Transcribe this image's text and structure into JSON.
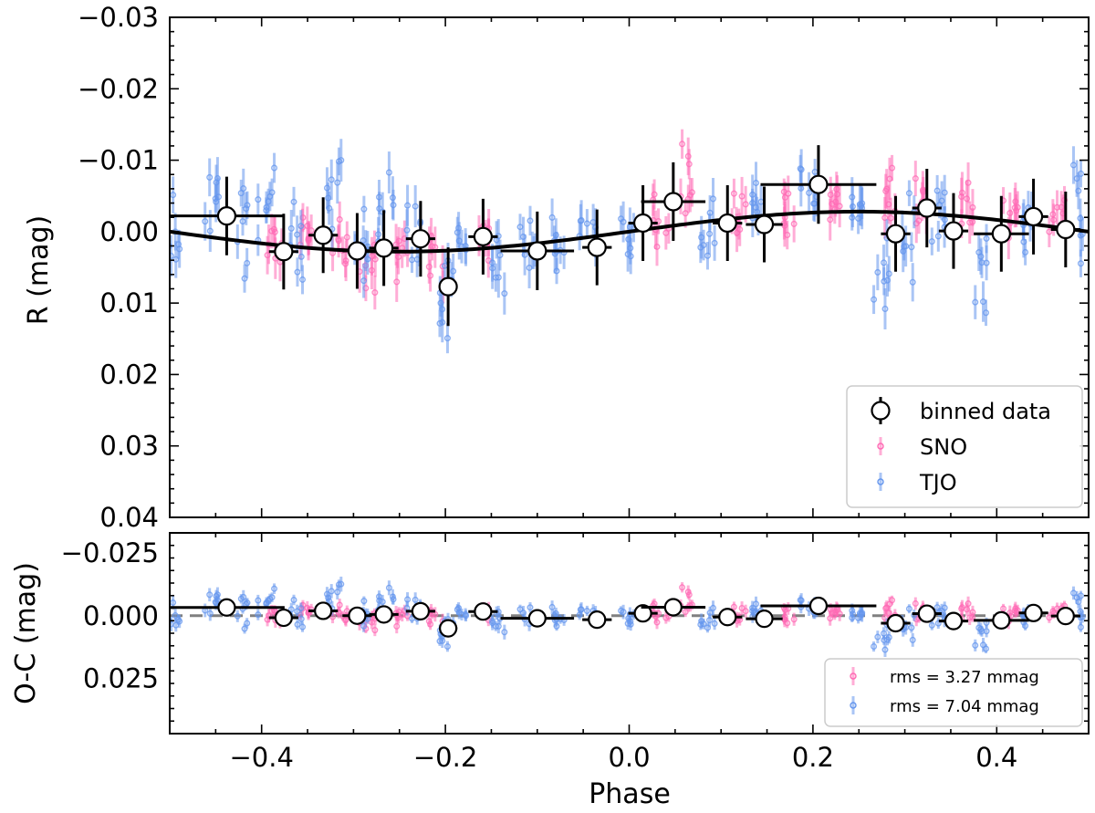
{
  "chart_data": [
    {
      "type": "scatter",
      "panel": "top",
      "ylabel": "R (mag)",
      "xlabel": "",
      "xlim": [
        -0.5,
        0.5
      ],
      "ylim": [
        -0.03,
        0.04
      ],
      "y_inverted": true,
      "xticks": [
        -0.4,
        -0.2,
        0.0,
        0.2,
        0.4
      ],
      "xtick_labels": [
        "−0.4",
        "−0.2",
        "0.0",
        "0.2",
        "0.4"
      ],
      "yticks": [
        -0.03,
        -0.02,
        -0.01,
        0.0,
        0.01,
        0.02,
        0.03,
        0.04
      ],
      "ytick_labels": [
        "−0.03",
        "−0.02",
        "−0.01",
        "0.00",
        "0.01",
        "0.02",
        "0.03",
        "0.04"
      ],
      "legend": {
        "placement": "lower-right",
        "entries": [
          {
            "label": "binned data",
            "series": "binned"
          },
          {
            "label": "SNO",
            "series": "SNO"
          },
          {
            "label": "TJO",
            "series": "TJO"
          }
        ]
      },
      "model": {
        "name": "sinusoid fit",
        "amplitude": 0.0028,
        "form": "y = -A*sin(2*pi*phase)"
      },
      "binned": {
        "name": "binned data",
        "color": "#000000",
        "points": [
          {
            "x": -0.438,
            "y": -0.0022,
            "xerr": 0.063,
            "yerr": 0.0055
          },
          {
            "x": -0.376,
            "y": 0.0028,
            "xerr": 0.016,
            "yerr": 0.0053
          },
          {
            "x": -0.333,
            "y": 0.0005,
            "xerr": 0.016,
            "yerr": 0.0053
          },
          {
            "x": -0.296,
            "y": 0.0027,
            "xerr": 0.016,
            "yerr": 0.0053
          },
          {
            "x": -0.267,
            "y": 0.0023,
            "xerr": 0.016,
            "yerr": 0.0053
          },
          {
            "x": -0.227,
            "y": 0.001,
            "xerr": 0.016,
            "yerr": 0.0053
          },
          {
            "x": -0.197,
            "y": 0.0077,
            "xerr": 0.01,
            "yerr": 0.0055
          },
          {
            "x": -0.159,
            "y": 0.0007,
            "xerr": 0.016,
            "yerr": 0.0053
          },
          {
            "x": -0.1,
            "y": 0.0027,
            "xerr": 0.04,
            "yerr": 0.0055
          },
          {
            "x": -0.035,
            "y": 0.0022,
            "xerr": 0.016,
            "yerr": 0.0053
          },
          {
            "x": 0.015,
            "y": -0.0012,
            "xerr": 0.016,
            "yerr": 0.0053
          },
          {
            "x": 0.048,
            "y": -0.0042,
            "xerr": 0.035,
            "yerr": 0.0055
          },
          {
            "x": 0.107,
            "y": -0.0012,
            "xerr": 0.016,
            "yerr": 0.0053
          },
          {
            "x": 0.147,
            "y": -0.001,
            "xerr": 0.02,
            "yerr": 0.0053
          },
          {
            "x": 0.206,
            "y": -0.0066,
            "xerr": 0.063,
            "yerr": 0.0055
          },
          {
            "x": 0.29,
            "y": 0.0003,
            "xerr": 0.016,
            "yerr": 0.0053
          },
          {
            "x": 0.324,
            "y": -0.0033,
            "xerr": 0.016,
            "yerr": 0.0055
          },
          {
            "x": 0.353,
            "y": -0.0001,
            "xerr": 0.016,
            "yerr": 0.0053
          },
          {
            "x": 0.405,
            "y": 0.0003,
            "xerr": 0.03,
            "yerr": 0.0053
          },
          {
            "x": 0.44,
            "y": -0.0021,
            "xerr": 0.016,
            "yerr": 0.0053
          },
          {
            "x": 0.475,
            "y": -0.0003,
            "xerr": 0.016,
            "yerr": 0.0053
          }
        ]
      },
      "series": [
        {
          "name": "SNO",
          "color": "#ff69b4",
          "groups": [
            {
              "x": -0.385,
              "center": 0.002,
              "spread": 0.006
            },
            {
              "x": -0.35,
              "center": 0.0,
              "spread": 0.006
            },
            {
              "x": -0.315,
              "center": 0.002,
              "spread": 0.006
            },
            {
              "x": -0.285,
              "center": 0.004,
              "spread": 0.007
            },
            {
              "x": -0.245,
              "center": 0.002,
              "spread": 0.006
            },
            {
              "x": -0.21,
              "center": 0.004,
              "spread": 0.006
            },
            {
              "x": -0.16,
              "center": 0.001,
              "spread": 0.006
            },
            {
              "x": 0.035,
              "center": -0.002,
              "spread": 0.007
            },
            {
              "x": 0.06,
              "center": -0.006,
              "spread": 0.008
            },
            {
              "x": 0.12,
              "center": -0.001,
              "spread": 0.006
            },
            {
              "x": 0.175,
              "center": -0.003,
              "spread": 0.006
            },
            {
              "x": 0.225,
              "center": -0.004,
              "spread": 0.006
            },
            {
              "x": 0.285,
              "center": -0.004,
              "spread": 0.007
            },
            {
              "x": 0.32,
              "center": -0.003,
              "spread": 0.008
            },
            {
              "x": 0.37,
              "center": -0.003,
              "spread": 0.007
            },
            {
              "x": 0.415,
              "center": -0.002,
              "spread": 0.006
            },
            {
              "x": 0.465,
              "center": -0.002,
              "spread": 0.006
            }
          ]
        },
        {
          "name": "TJO",
          "color": "#6495ed",
          "groups": [
            {
              "x": -0.495,
              "center": 0.0,
              "spread": 0.008
            },
            {
              "x": -0.455,
              "center": -0.004,
              "spread": 0.007
            },
            {
              "x": -0.42,
              "center": 0.0,
              "spread": 0.012
            },
            {
              "x": -0.395,
              "center": -0.004,
              "spread": 0.007
            },
            {
              "x": -0.36,
              "center": 0.001,
              "spread": 0.008
            },
            {
              "x": -0.32,
              "center": -0.006,
              "spread": 0.007
            },
            {
              "x": -0.29,
              "center": 0.002,
              "spread": 0.009
            },
            {
              "x": -0.265,
              "center": -0.004,
              "spread": 0.008
            },
            {
              "x": -0.235,
              "center": 0.0,
              "spread": 0.008
            },
            {
              "x": -0.2,
              "center": 0.01,
              "spread": 0.008
            },
            {
              "x": -0.185,
              "center": 0.003,
              "spread": 0.008
            },
            {
              "x": -0.14,
              "center": 0.004,
              "spread": 0.007
            },
            {
              "x": -0.11,
              "center": 0.002,
              "spread": 0.007
            },
            {
              "x": -0.075,
              "center": 0.002,
              "spread": 0.007
            },
            {
              "x": -0.045,
              "center": 0.0,
              "spread": 0.006
            },
            {
              "x": 0.0,
              "center": 0.0,
              "spread": 0.007
            },
            {
              "x": 0.085,
              "center": 0.0,
              "spread": 0.006
            },
            {
              "x": 0.14,
              "center": -0.002,
              "spread": 0.008
            },
            {
              "x": 0.195,
              "center": -0.006,
              "spread": 0.008
            },
            {
              "x": 0.245,
              "center": -0.002,
              "spread": 0.008
            },
            {
              "x": 0.275,
              "center": 0.006,
              "spread": 0.008
            },
            {
              "x": 0.305,
              "center": 0.001,
              "spread": 0.009
            },
            {
              "x": 0.335,
              "center": -0.003,
              "spread": 0.008
            },
            {
              "x": 0.385,
              "center": 0.006,
              "spread": 0.01
            },
            {
              "x": 0.43,
              "center": 0.0,
              "spread": 0.008
            },
            {
              "x": 0.49,
              "center": -0.004,
              "spread": 0.009
            }
          ]
        }
      ]
    },
    {
      "type": "scatter",
      "panel": "bottom",
      "ylabel": "O-C (mag)",
      "xlabel": "Phase",
      "xlim": [
        -0.5,
        0.5
      ],
      "ylim": [
        -0.033,
        0.047
      ],
      "y_inverted": true,
      "xticks": [
        -0.4,
        -0.2,
        0.0,
        0.2,
        0.4
      ],
      "xtick_labels": [
        "−0.4",
        "−0.2",
        "0.0",
        "0.2",
        "0.4"
      ],
      "yticks": [
        -0.025,
        0.0,
        0.025
      ],
      "ytick_labels": [
        "−0.025",
        "0.000",
        "0.025"
      ],
      "reference_line": {
        "y": 0.0,
        "style": "dashed",
        "color": "#808080"
      },
      "legend": {
        "placement": "lower-right",
        "entries": [
          {
            "label": "rms = 3.27 mmag",
            "series": "SNO"
          },
          {
            "label": "rms = 7.04 mmag",
            "series": "TJO"
          }
        ]
      }
    }
  ]
}
